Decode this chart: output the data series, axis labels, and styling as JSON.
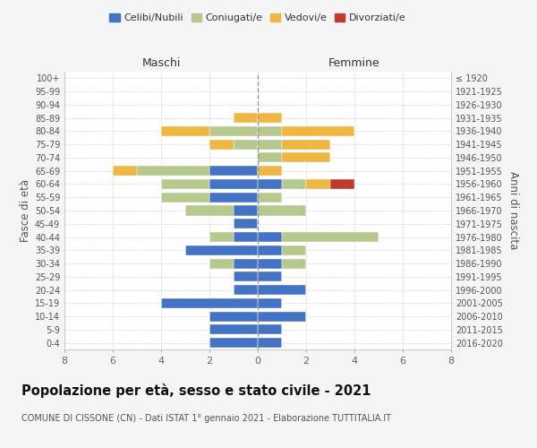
{
  "age_groups": [
    "0-4",
    "5-9",
    "10-14",
    "15-19",
    "20-24",
    "25-29",
    "30-34",
    "35-39",
    "40-44",
    "45-49",
    "50-54",
    "55-59",
    "60-64",
    "65-69",
    "70-74",
    "75-79",
    "80-84",
    "85-89",
    "90-94",
    "95-99",
    "100+"
  ],
  "birth_years": [
    "2016-2020",
    "2011-2015",
    "2006-2010",
    "2001-2005",
    "1996-2000",
    "1991-1995",
    "1986-1990",
    "1981-1985",
    "1976-1980",
    "1971-1975",
    "1966-1970",
    "1961-1965",
    "1956-1960",
    "1951-1955",
    "1946-1950",
    "1941-1945",
    "1936-1940",
    "1931-1935",
    "1926-1930",
    "1921-1925",
    "≤ 1920"
  ],
  "male": {
    "celibi": [
      2,
      2,
      2,
      4,
      1,
      1,
      1,
      3,
      1,
      1,
      1,
      2,
      2,
      2,
      0,
      0,
      0,
      0,
      0,
      0,
      0
    ],
    "coniugati": [
      0,
      0,
      0,
      0,
      0,
      0,
      1,
      0,
      1,
      0,
      2,
      2,
      2,
      3,
      0,
      1,
      2,
      0,
      0,
      0,
      0
    ],
    "vedovi": [
      0,
      0,
      0,
      0,
      0,
      0,
      0,
      0,
      0,
      0,
      0,
      0,
      0,
      1,
      0,
      1,
      2,
      1,
      0,
      0,
      0
    ],
    "divorziati": [
      0,
      0,
      0,
      0,
      0,
      0,
      0,
      0,
      0,
      0,
      0,
      0,
      0,
      0,
      0,
      0,
      0,
      0,
      0,
      0,
      0
    ]
  },
  "female": {
    "nubili": [
      1,
      1,
      2,
      1,
      2,
      1,
      1,
      1,
      1,
      0,
      0,
      0,
      1,
      0,
      0,
      0,
      0,
      0,
      0,
      0,
      0
    ],
    "coniugate": [
      0,
      0,
      0,
      0,
      0,
      0,
      1,
      1,
      4,
      0,
      2,
      1,
      1,
      0,
      1,
      1,
      1,
      0,
      0,
      0,
      0
    ],
    "vedove": [
      0,
      0,
      0,
      0,
      0,
      0,
      0,
      0,
      0,
      0,
      0,
      0,
      1,
      1,
      2,
      2,
      3,
      1,
      0,
      0,
      0
    ],
    "divorziate": [
      0,
      0,
      0,
      0,
      0,
      0,
      0,
      0,
      0,
      0,
      0,
      0,
      1,
      0,
      0,
      0,
      0,
      0,
      0,
      0,
      0
    ]
  },
  "colors": {
    "celibi": "#4472c4",
    "coniugati": "#b5c98e",
    "vedovi": "#f0b642",
    "divorziati": "#c0392b"
  },
  "xlim": 8,
  "title": "Popolazione per età, sesso e stato civile - 2021",
  "subtitle": "COMUNE DI CISSONE (CN) - Dati ISTAT 1° gennaio 2021 - Elaborazione TUTTITALIA.IT",
  "xlabel_left": "Maschi",
  "xlabel_right": "Femmine",
  "ylabel_left": "Fasce di età",
  "ylabel_right": "Anni di nascita",
  "bg_color": "#f5f5f5",
  "plot_bg": "#ffffff",
  "grid_color": "#cccccc"
}
